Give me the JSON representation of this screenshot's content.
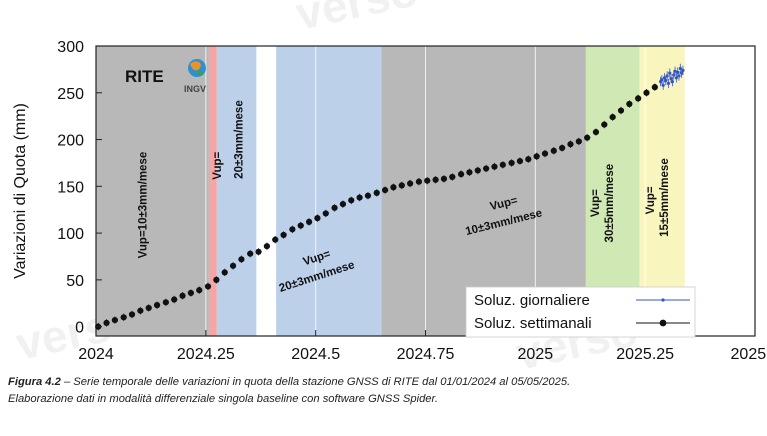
{
  "chart_data": {
    "type": "scatter",
    "station": "RITE",
    "logo_text": "INGV",
    "ylabel": "Variazioni di Quota (mm)",
    "xlabel": "",
    "xlim": [
      2024,
      2025.5
    ],
    "ylim": [
      -10,
      300
    ],
    "xticks": [
      {
        "value": 2024,
        "label": "2024"
      },
      {
        "value": 2024.25,
        "label": "2024.25"
      },
      {
        "value": 2024.5,
        "label": "2024.5"
      },
      {
        "value": 2024.75,
        "label": "2024.75"
      },
      {
        "value": 2025,
        "label": "2025"
      },
      {
        "value": 2025.25,
        "label": "2025.25"
      },
      {
        "value": 2025.5,
        "label": "2025.5"
      }
    ],
    "yticks": [
      {
        "value": 0,
        "label": "0"
      },
      {
        "value": 50,
        "label": "50"
      },
      {
        "value": 100,
        "label": "100"
      },
      {
        "value": 150,
        "label": "150"
      },
      {
        "value": 200,
        "label": "200"
      },
      {
        "value": 250,
        "label": "250"
      },
      {
        "value": 300,
        "label": "300"
      }
    ],
    "grid": "vertical",
    "legend_position": "bottom-right",
    "bands": [
      {
        "from": 2024.0,
        "to": 2024.257,
        "color": "#b8b8b8"
      },
      {
        "from": 2024.257,
        "to": 2024.275,
        "color": "#f4a6a6"
      },
      {
        "from": 2024.275,
        "to": 2024.365,
        "color": "#bcd0ea"
      },
      {
        "from": 2024.41,
        "to": 2024.65,
        "color": "#bcd0ea"
      },
      {
        "from": 2024.65,
        "to": 2025.115,
        "color": "#b8b8b8"
      },
      {
        "from": 2025.115,
        "to": 2025.237,
        "color": "#cfe8b4"
      },
      {
        "from": 2025.237,
        "to": 2025.34,
        "color": "#f8f5bf"
      }
    ],
    "annotations": [
      {
        "text": "Vup=10±3mm/mese",
        "x": 2024.115,
        "y": 130,
        "rotate": -90
      },
      {
        "text": "Vup=",
        "x": 2024.285,
        "y": 172,
        "rotate": -90
      },
      {
        "text": "20±3mm/mese",
        "x": 2024.333,
        "y": 200,
        "rotate": -90
      },
      {
        "text": "Vup=",
        "x": 2024.505,
        "y": 70,
        "rotate": -18
      },
      {
        "text": "20±3mm/mese",
        "x": 2024.505,
        "y": 50,
        "rotate": -18
      },
      {
        "text": "Vup=",
        "x": 2024.93,
        "y": 128,
        "rotate": -14
      },
      {
        "text": "10±3mm/mese",
        "x": 2024.93,
        "y": 108,
        "rotate": -14
      },
      {
        "text": "Vup=",
        "x": 2025.145,
        "y": 132,
        "rotate": -90
      },
      {
        "text": "30±5mm/mese",
        "x": 2025.177,
        "y": 132,
        "rotate": -90
      },
      {
        "text": "Vup=",
        "x": 2025.27,
        "y": 135,
        "rotate": -90
      },
      {
        "text": "15±5mm/mese",
        "x": 2025.302,
        "y": 138,
        "rotate": -90
      }
    ],
    "series": [
      {
        "name": "Soluz. giornaliere",
        "color": "#3355cc",
        "marker": "small-dot",
        "x": [
          2025.285,
          2025.288,
          2025.291,
          2025.294,
          2025.297,
          2025.3,
          2025.303,
          2025.306,
          2025.309,
          2025.312,
          2025.315,
          2025.318,
          2025.321,
          2025.324,
          2025.327,
          2025.33,
          2025.333,
          2025.336
        ],
        "y": [
          262,
          264,
          258,
          266,
          263,
          268,
          260,
          271,
          265,
          262,
          269,
          273,
          266,
          272,
          268,
          276,
          271,
          274
        ],
        "err": 5
      },
      {
        "name": "Soluz. settimanali",
        "color": "#111111",
        "marker": "dot",
        "x": [
          2024.005,
          2024.024,
          2024.043,
          2024.063,
          2024.082,
          2024.101,
          2024.12,
          2024.139,
          2024.159,
          2024.178,
          2024.197,
          2024.216,
          2024.235,
          2024.255,
          2024.274,
          2024.293,
          2024.312,
          2024.331,
          2024.351,
          2024.37,
          2024.389,
          2024.408,
          2024.427,
          2024.447,
          2024.466,
          2024.485,
          2024.504,
          2024.523,
          2024.543,
          2024.562,
          2024.581,
          2024.6,
          2024.619,
          2024.639,
          2024.658,
          2024.677,
          2024.696,
          2024.715,
          2024.735,
          2024.754,
          2024.773,
          2024.792,
          2024.811,
          2024.831,
          2024.85,
          2024.869,
          2024.888,
          2024.907,
          2024.926,
          2024.946,
          2024.965,
          2024.984,
          2025.003,
          2025.022,
          2025.042,
          2025.061,
          2025.08,
          2025.099,
          2025.118,
          2025.138,
          2025.157,
          2025.176,
          2025.195,
          2025.214,
          2025.234,
          2025.253,
          2025.272
        ],
        "y": [
          0,
          4,
          7,
          10,
          13,
          17,
          20,
          23,
          26,
          29,
          33,
          36,
          39,
          43,
          50,
          58,
          65,
          72,
          78,
          80,
          86,
          93,
          98,
          104,
          108,
          112,
          116,
          121,
          127,
          131,
          135,
          138,
          140,
          143,
          146,
          149,
          151,
          153,
          155,
          156,
          157,
          158,
          160,
          163,
          165,
          167,
          169,
          171,
          173,
          175,
          177,
          179,
          182,
          185,
          188,
          191,
          195,
          198,
          202,
          208,
          216,
          224,
          231,
          238,
          244,
          250,
          256
        ],
        "err": 4
      }
    ]
  },
  "caption": {
    "figure_label": "Figura 4.2",
    "line1": " – Serie temporale delle variazioni in quota della stazione GNSS di RITE dal 01/01/2024 al 05/05/2025.",
    "line2": "Elaborazione dati in modalità differenziale singola baseline con software GNSS Spider."
  }
}
